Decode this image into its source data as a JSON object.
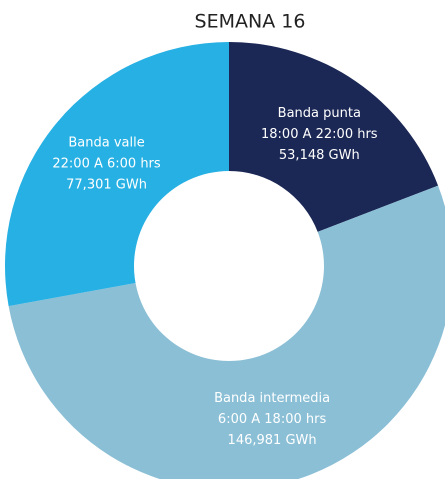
{
  "chart_data": {
    "type": "donut",
    "title": "SEMANA 16",
    "categories": [
      "Banda punta",
      "Banda intermedia",
      "Banda valle"
    ],
    "hours": [
      "18:00 A 22:00 hrs",
      "6:00 A 18:00 hrs",
      "22:00 A 6:00 hrs"
    ],
    "values": [
      53.148,
      146.981,
      77.301
    ],
    "value_labels": [
      "53,148 GWh",
      "146,981 GWh",
      "77,301 GWh"
    ],
    "colors": [
      "#1b2755",
      "#8bbfd6",
      "#27b0e3"
    ]
  }
}
